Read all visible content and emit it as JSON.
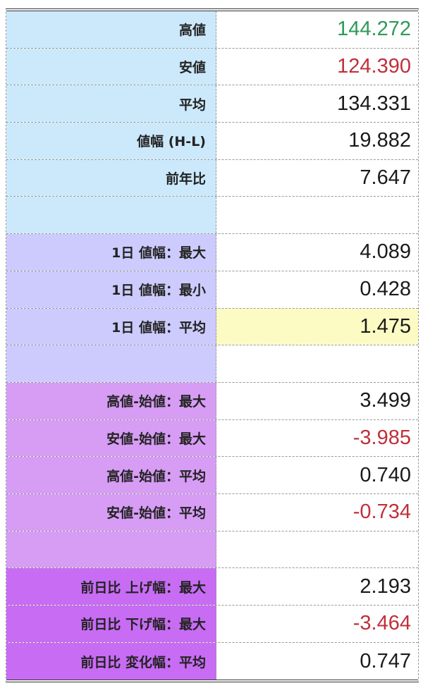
{
  "colors": {
    "positive": "#2e9a5a",
    "negative": "#c0303a",
    "highlight": "#fdfbc4"
  },
  "rows": [
    {
      "label": "高値",
      "value": "144.272",
      "group": 1,
      "tone": "positive"
    },
    {
      "label": "安値",
      "value": "124.390",
      "group": 1,
      "tone": "negative"
    },
    {
      "label": "平均",
      "value": "134.331",
      "group": 1
    },
    {
      "label": "値幅 (H-L)",
      "value": "19.882",
      "group": 1
    },
    {
      "label": "前年比",
      "value": "7.647",
      "group": 1
    },
    {
      "label": "",
      "value": "",
      "group": 1
    },
    {
      "label": "1日 値幅：最大",
      "value": "4.089",
      "group": 2
    },
    {
      "label": "1日 値幅：最小",
      "value": "0.428",
      "group": 2
    },
    {
      "label": "1日 値幅：平均",
      "value": "1.475",
      "group": 2,
      "highlight": true
    },
    {
      "label": "",
      "value": "",
      "group": 2
    },
    {
      "label": "高値-始値：最大",
      "value": "3.499",
      "group": 3
    },
    {
      "label": "安値-始値：最大",
      "value": "-3.985",
      "group": 3,
      "tone": "negative"
    },
    {
      "label": "高値-始値：平均",
      "value": "0.740",
      "group": 3
    },
    {
      "label": "安値-始値：平均",
      "value": "-0.734",
      "group": 3,
      "tone": "negative"
    },
    {
      "label": "",
      "value": "",
      "group": 3
    },
    {
      "label": "前日比 上げ幅：最大",
      "value": "2.193",
      "group": 4
    },
    {
      "label": "前日比 下げ幅：最大",
      "value": "-3.464",
      "group": 4,
      "tone": "negative"
    },
    {
      "label": "前日比 変化幅：平均",
      "value": "0.747",
      "group": 4
    }
  ]
}
